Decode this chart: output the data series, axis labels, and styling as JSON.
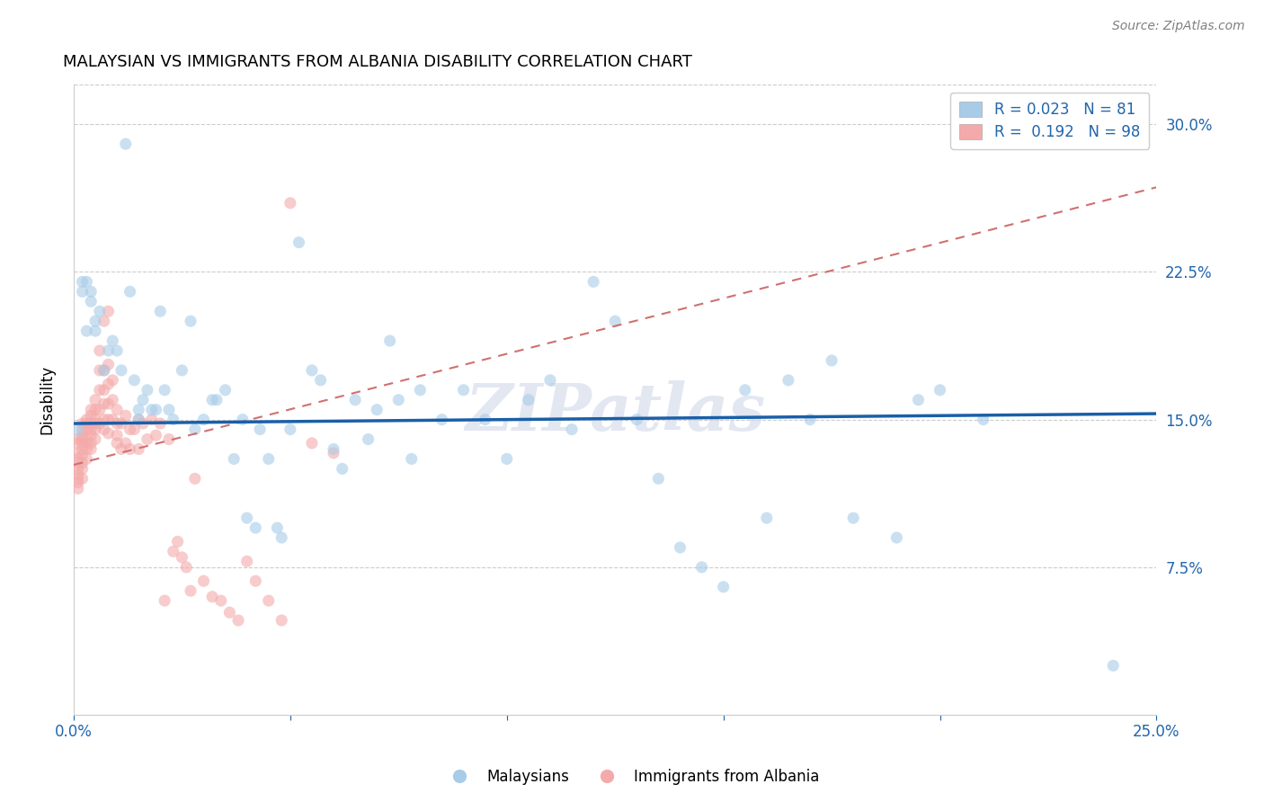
{
  "title": "MALAYSIAN VS IMMIGRANTS FROM ALBANIA DISABILITY CORRELATION CHART",
  "source": "Source: ZipAtlas.com",
  "ylabel": "Disability",
  "watermark": "ZIPatlas",
  "legend_blue_r": "0.023",
  "legend_blue_n": "81",
  "legend_pink_r": "0.192",
  "legend_pink_n": "98",
  "legend_blue_label": "Malaysians",
  "legend_pink_label": "Immigrants from Albania",
  "blue_color": "#a8cce8",
  "pink_color": "#f4aaaa",
  "blue_line_color": "#1a5fa8",
  "pink_line_color": "#d07070",
  "ytick_labels": [
    "7.5%",
    "15.0%",
    "22.5%",
    "30.0%"
  ],
  "ytick_values": [
    0.075,
    0.15,
    0.225,
    0.3
  ],
  "xlim": [
    0.0,
    0.25
  ],
  "ylim": [
    0.0,
    0.32
  ],
  "blue_x": [
    0.001,
    0.002,
    0.002,
    0.003,
    0.003,
    0.004,
    0.004,
    0.005,
    0.005,
    0.006,
    0.007,
    0.008,
    0.009,
    0.01,
    0.011,
    0.012,
    0.013,
    0.014,
    0.015,
    0.015,
    0.016,
    0.017,
    0.018,
    0.019,
    0.02,
    0.021,
    0.022,
    0.023,
    0.025,
    0.027,
    0.028,
    0.03,
    0.032,
    0.033,
    0.035,
    0.037,
    0.039,
    0.04,
    0.042,
    0.043,
    0.045,
    0.047,
    0.048,
    0.05,
    0.052,
    0.055,
    0.057,
    0.06,
    0.062,
    0.065,
    0.068,
    0.07,
    0.073,
    0.075,
    0.078,
    0.08,
    0.085,
    0.09,
    0.095,
    0.1,
    0.105,
    0.11,
    0.115,
    0.12,
    0.125,
    0.13,
    0.135,
    0.14,
    0.145,
    0.15,
    0.155,
    0.16,
    0.165,
    0.17,
    0.175,
    0.18,
    0.19,
    0.195,
    0.2,
    0.21,
    0.24
  ],
  "blue_y": [
    0.145,
    0.215,
    0.22,
    0.195,
    0.22,
    0.215,
    0.21,
    0.2,
    0.195,
    0.205,
    0.175,
    0.185,
    0.19,
    0.185,
    0.175,
    0.29,
    0.215,
    0.17,
    0.15,
    0.155,
    0.16,
    0.165,
    0.155,
    0.155,
    0.205,
    0.165,
    0.155,
    0.15,
    0.175,
    0.2,
    0.145,
    0.15,
    0.16,
    0.16,
    0.165,
    0.13,
    0.15,
    0.1,
    0.095,
    0.145,
    0.13,
    0.095,
    0.09,
    0.145,
    0.24,
    0.175,
    0.17,
    0.135,
    0.125,
    0.16,
    0.14,
    0.155,
    0.19,
    0.16,
    0.13,
    0.165,
    0.15,
    0.165,
    0.15,
    0.13,
    0.16,
    0.17,
    0.145,
    0.22,
    0.2,
    0.15,
    0.12,
    0.085,
    0.075,
    0.065,
    0.165,
    0.1,
    0.17,
    0.15,
    0.18,
    0.1,
    0.09,
    0.16,
    0.165,
    0.15,
    0.025
  ],
  "pink_x": [
    0.001,
    0.001,
    0.001,
    0.001,
    0.001,
    0.001,
    0.001,
    0.001,
    0.001,
    0.001,
    0.002,
    0.002,
    0.002,
    0.002,
    0.002,
    0.002,
    0.002,
    0.002,
    0.002,
    0.002,
    0.003,
    0.003,
    0.003,
    0.003,
    0.003,
    0.003,
    0.003,
    0.004,
    0.004,
    0.004,
    0.004,
    0.004,
    0.004,
    0.004,
    0.005,
    0.005,
    0.005,
    0.005,
    0.005,
    0.005,
    0.006,
    0.006,
    0.006,
    0.006,
    0.006,
    0.007,
    0.007,
    0.007,
    0.007,
    0.007,
    0.007,
    0.008,
    0.008,
    0.008,
    0.008,
    0.008,
    0.008,
    0.009,
    0.009,
    0.009,
    0.01,
    0.01,
    0.01,
    0.01,
    0.011,
    0.011,
    0.012,
    0.012,
    0.013,
    0.013,
    0.014,
    0.015,
    0.015,
    0.016,
    0.017,
    0.018,
    0.019,
    0.02,
    0.021,
    0.022,
    0.023,
    0.024,
    0.025,
    0.026,
    0.027,
    0.028,
    0.03,
    0.032,
    0.034,
    0.036,
    0.038,
    0.04,
    0.042,
    0.045,
    0.048,
    0.05,
    0.055,
    0.06
  ],
  "pink_y": [
    0.14,
    0.138,
    0.133,
    0.13,
    0.128,
    0.125,
    0.122,
    0.12,
    0.118,
    0.115,
    0.148,
    0.145,
    0.142,
    0.14,
    0.138,
    0.135,
    0.132,
    0.128,
    0.125,
    0.12,
    0.15,
    0.148,
    0.145,
    0.14,
    0.138,
    0.135,
    0.13,
    0.155,
    0.152,
    0.148,
    0.145,
    0.142,
    0.138,
    0.135,
    0.16,
    0.155,
    0.15,
    0.148,
    0.145,
    0.14,
    0.185,
    0.175,
    0.165,
    0.155,
    0.148,
    0.2,
    0.175,
    0.165,
    0.158,
    0.15,
    0.145,
    0.205,
    0.178,
    0.168,
    0.158,
    0.15,
    0.143,
    0.17,
    0.16,
    0.15,
    0.155,
    0.148,
    0.142,
    0.138,
    0.148,
    0.135,
    0.152,
    0.138,
    0.145,
    0.135,
    0.145,
    0.15,
    0.135,
    0.148,
    0.14,
    0.15,
    0.142,
    0.148,
    0.058,
    0.14,
    0.083,
    0.088,
    0.08,
    0.075,
    0.063,
    0.12,
    0.068,
    0.06,
    0.058,
    0.052,
    0.048,
    0.078,
    0.068,
    0.058,
    0.048,
    0.26,
    0.138,
    0.133
  ],
  "blue_trend_x": [
    0.0,
    0.25
  ],
  "blue_trend_y": [
    0.148,
    0.153
  ],
  "pink_trend_x": [
    0.0,
    0.25
  ],
  "pink_trend_y": [
    0.127,
    0.268
  ]
}
